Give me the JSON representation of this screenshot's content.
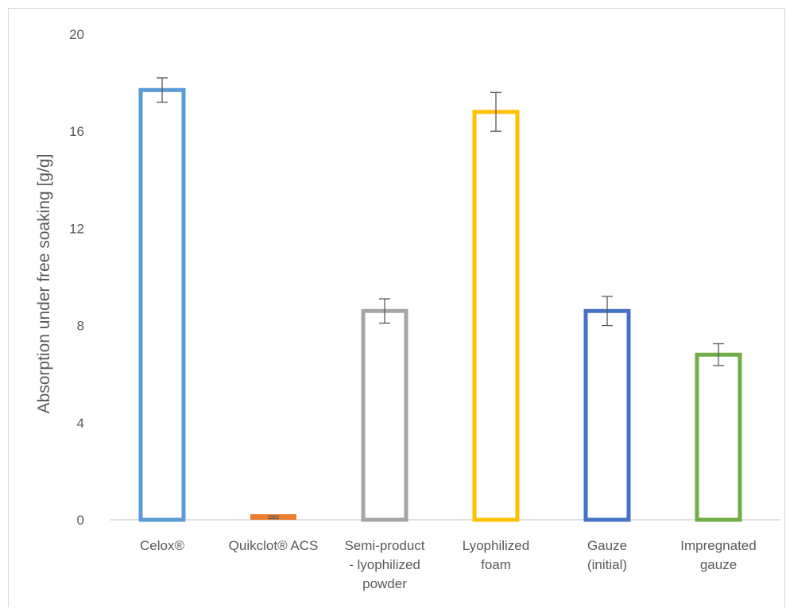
{
  "chart_data": {
    "type": "bar",
    "title": "",
    "xlabel": "",
    "ylabel": "Absorption under free soaking [g/g]",
    "ylim": [
      0,
      20
    ],
    "yticks": [
      0,
      4,
      8,
      12,
      16,
      20
    ],
    "grid": false,
    "legend": "none",
    "categories": [
      [
        "Celox®"
      ],
      [
        "Quikclot® ACS"
      ],
      [
        "Semi-product",
        "- lyophilized",
        "powder"
      ],
      [
        "Lyophilized",
        "foam"
      ],
      [
        "Gauze",
        "(initial)"
      ],
      [
        "Impregnated",
        "gauze"
      ]
    ],
    "values": [
      17.7,
      0.1,
      8.6,
      16.8,
      8.6,
      6.8
    ],
    "errors": [
      0.5,
      0.05,
      0.5,
      0.8,
      0.6,
      0.45
    ],
    "colors": [
      "#5b9bd5",
      "#ed7d31",
      "#a5a5a5",
      "#ffc000",
      "#4472c4",
      "#70ad47"
    ],
    "error_color": "#595959"
  }
}
